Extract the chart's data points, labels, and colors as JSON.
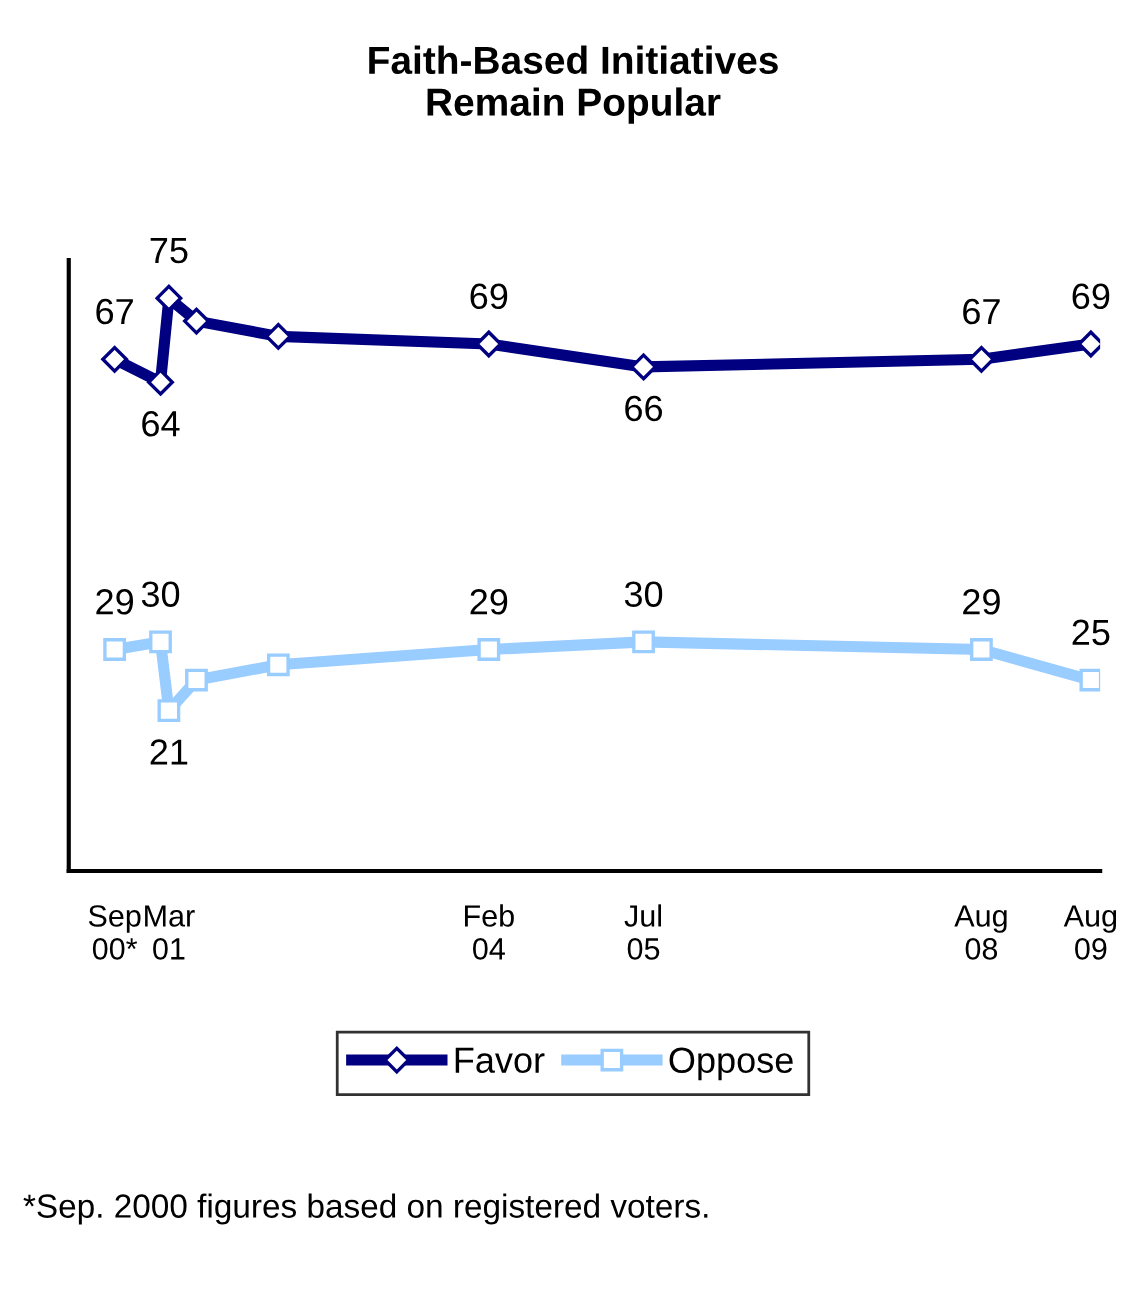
{
  "chart_data": {
    "type": "line",
    "title": "Faith-Based Initiatives\nRemain Popular",
    "x": [
      "2000-09",
      "2001-02",
      "2001-03",
      "2001-06",
      "2002-03",
      "2004-02",
      "2005-07",
      "2008-08",
      "2009-08"
    ],
    "series": [
      {
        "name": "Favor",
        "color": "#000080",
        "marker": "diamond",
        "values": [
          67,
          64,
          75,
          72,
          70,
          69,
          66,
          67,
          69
        ],
        "value_labels": [
          "67",
          "64",
          "75",
          null,
          null,
          "69",
          "66",
          "67",
          "69"
        ]
      },
      {
        "name": "Oppose",
        "color": "#99ccff",
        "marker": "square",
        "values": [
          29,
          30,
          21,
          25,
          27,
          29,
          30,
          29,
          25
        ],
        "value_labels": [
          "29",
          "30",
          "21",
          null,
          null,
          "29",
          "30",
          "29",
          "25"
        ]
      }
    ],
    "xlim": [
      "2000-04",
      "2009-09"
    ],
    "ylim": [
      0,
      80
    ],
    "xticks": [
      {
        "value": "2000-09",
        "label": "Sep\n00*"
      },
      {
        "value": "2001-03",
        "label": "Mar\n01"
      },
      {
        "value": "2004-02",
        "label": "Feb\n04"
      },
      {
        "value": "2005-07",
        "label": "Jul\n05"
      },
      {
        "value": "2008-08",
        "label": "Aug\n08"
      },
      {
        "value": "2009-08",
        "label": "Aug\n09"
      }
    ],
    "tick_labels": "x",
    "legend": "bottom",
    "grid": false,
    "line_style": "solid",
    "annotations": [
      "*Sep. 2000 figures based on registered voters."
    ]
  }
}
